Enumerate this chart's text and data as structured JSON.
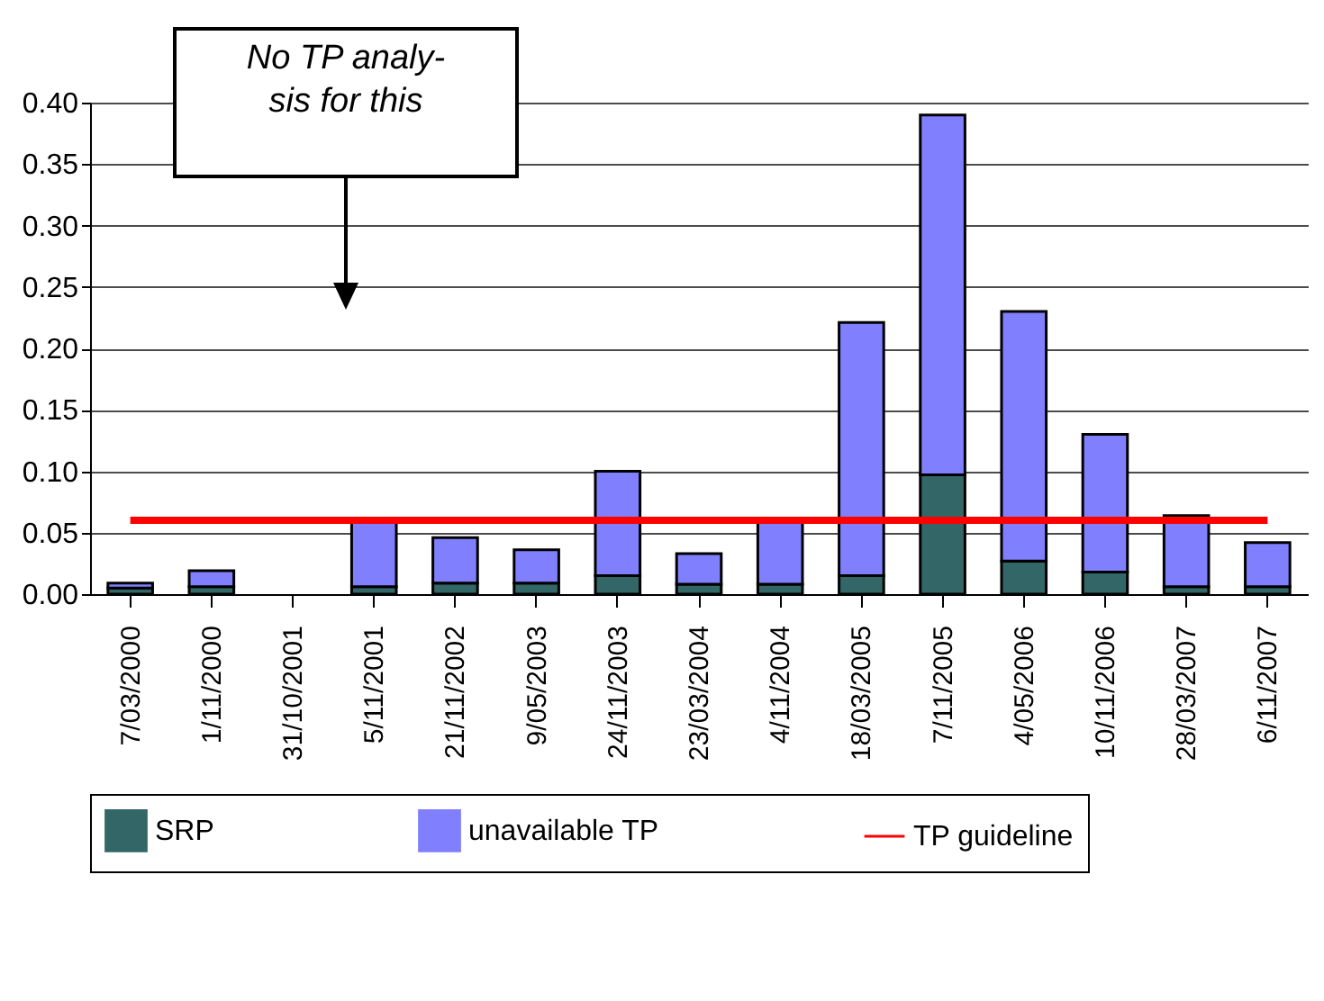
{
  "chart_data": {
    "type": "bar",
    "stacked": true,
    "categories": [
      "7/03/2000",
      "1/11/2000",
      "31/10/2001",
      "5/11/2001",
      "21/11/2002",
      "9/05/2003",
      "24/11/2003",
      "23/03/2004",
      "4/11/2004",
      "18/03/2005",
      "7/11/2005",
      "4/05/2006",
      "10/11/2006",
      "28/03/2007",
      "6/11/2007"
    ],
    "series": [
      {
        "name": "SRP",
        "color": "#336666",
        "values": [
          0.005,
          0.006,
          null,
          0.006,
          0.009,
          0.009,
          0.015,
          0.008,
          0.008,
          0.015,
          0.097,
          0.027,
          0.018,
          0.006,
          0.006
        ]
      },
      {
        "name": "unavailable TP",
        "color": "#8080ff",
        "values": [
          0.004,
          0.013,
          null,
          0.054,
          0.037,
          0.027,
          0.085,
          0.025,
          0.052,
          0.206,
          0.293,
          0.203,
          0.112,
          0.058,
          0.036
        ]
      },
      {
        "name": "TP guideline",
        "type": "line",
        "color": "#ff0000",
        "values": [
          0.06,
          0.06,
          0.06,
          0.06,
          0.06,
          0.06,
          0.06,
          0.06,
          0.06,
          0.06,
          0.06,
          0.06,
          0.06,
          0.06,
          0.06
        ]
      }
    ],
    "ylim": [
      0,
      0.4
    ],
    "yticks": [
      {
        "value": 0,
        "label": "0.00"
      },
      {
        "value": 0.05,
        "label": "0.05"
      },
      {
        "value": 0.1,
        "label": "0.10"
      },
      {
        "value": 0.15,
        "label": "0.15"
      },
      {
        "value": 0.2,
        "label": "0.20"
      },
      {
        "value": 0.25,
        "label": "0.25"
      },
      {
        "value": 0.3,
        "label": "0.30"
      },
      {
        "value": 0.35,
        "label": "0.35"
      },
      {
        "value": 0.4,
        "label": "0.40"
      }
    ],
    "grid": "y",
    "legend": "bottom",
    "marker": "none",
    "annotations": [
      "No TP analy-\nsis for this"
    ]
  }
}
